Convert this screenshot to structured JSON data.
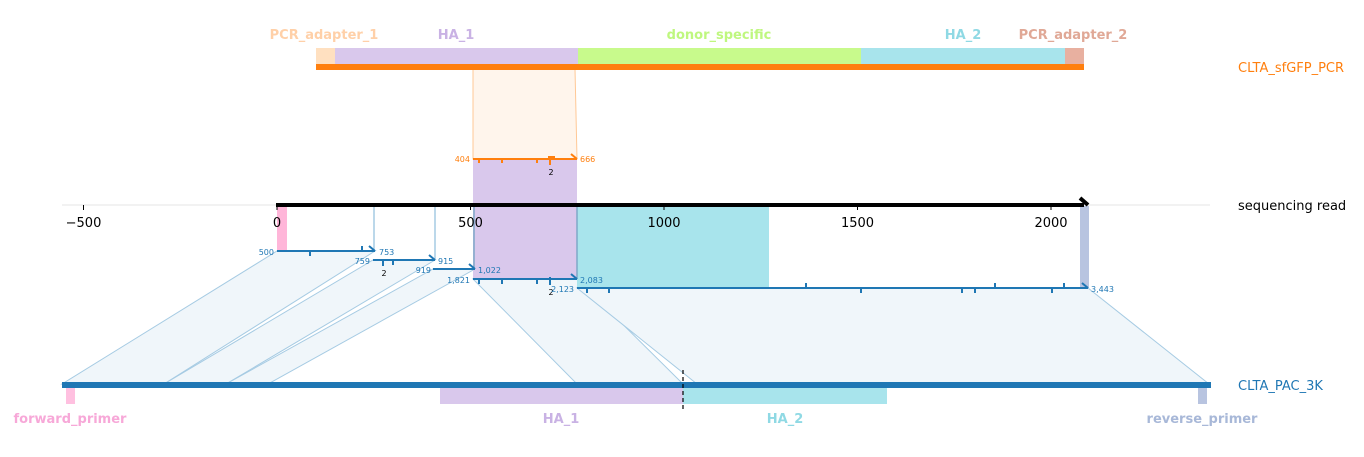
{
  "references": {
    "top": {
      "name": "CLTA_sfGFP_PCR",
      "color": "#ff7f0e",
      "features": [
        {
          "name": "PCR_adapter_1",
          "color": "#ffd0a8"
        },
        {
          "name": "HA_1",
          "color": "#c9b2e4"
        },
        {
          "name": "donor_specific",
          "color": "#bff77f"
        },
        {
          "name": "HA_2",
          "color": "#8fd9e4"
        },
        {
          "name": "PCR_adapter_2",
          "color": "#e0a896"
        }
      ]
    },
    "bottom": {
      "name": "CLTA_PAC_3K",
      "color": "#1f77b4",
      "features": [
        {
          "name": "forward_primer",
          "color": "#f7a8d8"
        },
        {
          "name": "HA_1",
          "color": "#c9b2e4"
        },
        {
          "name": "HA_2",
          "color": "#8fd9e4"
        },
        {
          "name": "reverse_primer",
          "color": "#a8b8d8"
        }
      ]
    }
  },
  "read": {
    "name": "sequencing read",
    "axis": {
      "ticks": [
        {
          "value": -500,
          "label": "−500"
        },
        {
          "value": 0,
          "label": "0"
        },
        {
          "value": 500,
          "label": "500"
        },
        {
          "value": 1000,
          "label": "1000"
        },
        {
          "value": 1500,
          "label": "1500"
        },
        {
          "value": 2000,
          "label": "2000"
        }
      ]
    }
  },
  "alignments": [
    {
      "group": "top",
      "start_label": "404",
      "end_label": "666",
      "count_label": "2"
    },
    {
      "group": "bottom",
      "start_label": "500",
      "end_label": "753",
      "count_label": ""
    },
    {
      "group": "bottom",
      "start_label": "759",
      "end_label": "915",
      "count_label": "2"
    },
    {
      "group": "bottom",
      "start_label": "919",
      "end_label": "1,022",
      "count_label": ""
    },
    {
      "group": "bottom",
      "start_label": "1,821",
      "end_label": "2,083",
      "count_label": "2"
    },
    {
      "group": "bottom",
      "start_label": "2,123",
      "end_label": "3,443",
      "count_label": ""
    }
  ]
}
